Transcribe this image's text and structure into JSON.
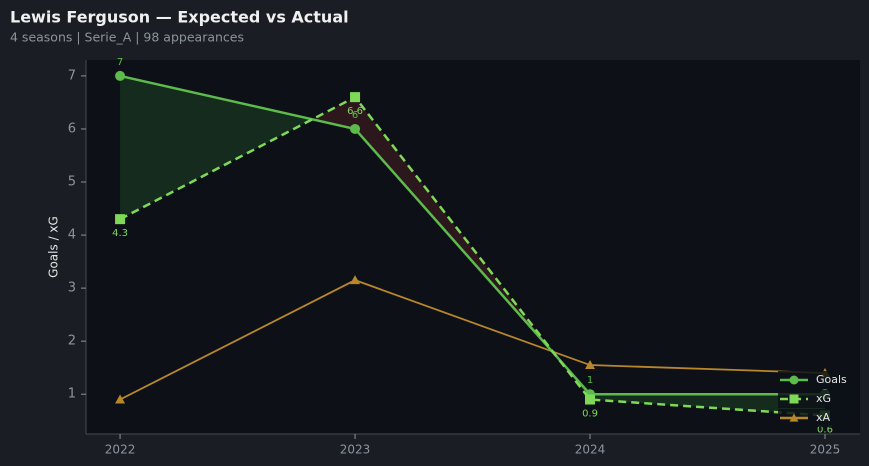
{
  "chart_data": {
    "type": "line",
    "title": "Lewis Ferguson — Expected vs Actual",
    "subtitle": "4 seasons | Serie_A | 98 appearances",
    "y_label": "Goals / xG",
    "x": [
      2022,
      2023,
      2024,
      2025
    ],
    "xlim": [
      2021.855,
      2025.149
    ],
    "xticks": [
      2022,
      2023,
      2024,
      2025
    ],
    "ylim": [
      0.25,
      7.3
    ],
    "yticks": [
      1,
      2,
      3,
      4,
      5,
      6,
      7
    ],
    "legend": "lower right",
    "series": [
      {
        "name": "Goals",
        "color": "#5dbb4c",
        "dash": false,
        "marker": "circle",
        "labels": "above",
        "values": [
          7,
          6,
          1,
          1
        ]
      },
      {
        "name": "xG",
        "color": "#7ed957",
        "dash": true,
        "marker": "square",
        "labels": "below",
        "values": [
          4.3,
          6.6,
          0.9,
          0.6
        ]
      },
      {
        "name": "xA",
        "color": "#b8862b",
        "dash": false,
        "marker": "triangle",
        "values": [
          0.9,
          3.15,
          1.55,
          1.4
        ]
      }
    ]
  }
}
